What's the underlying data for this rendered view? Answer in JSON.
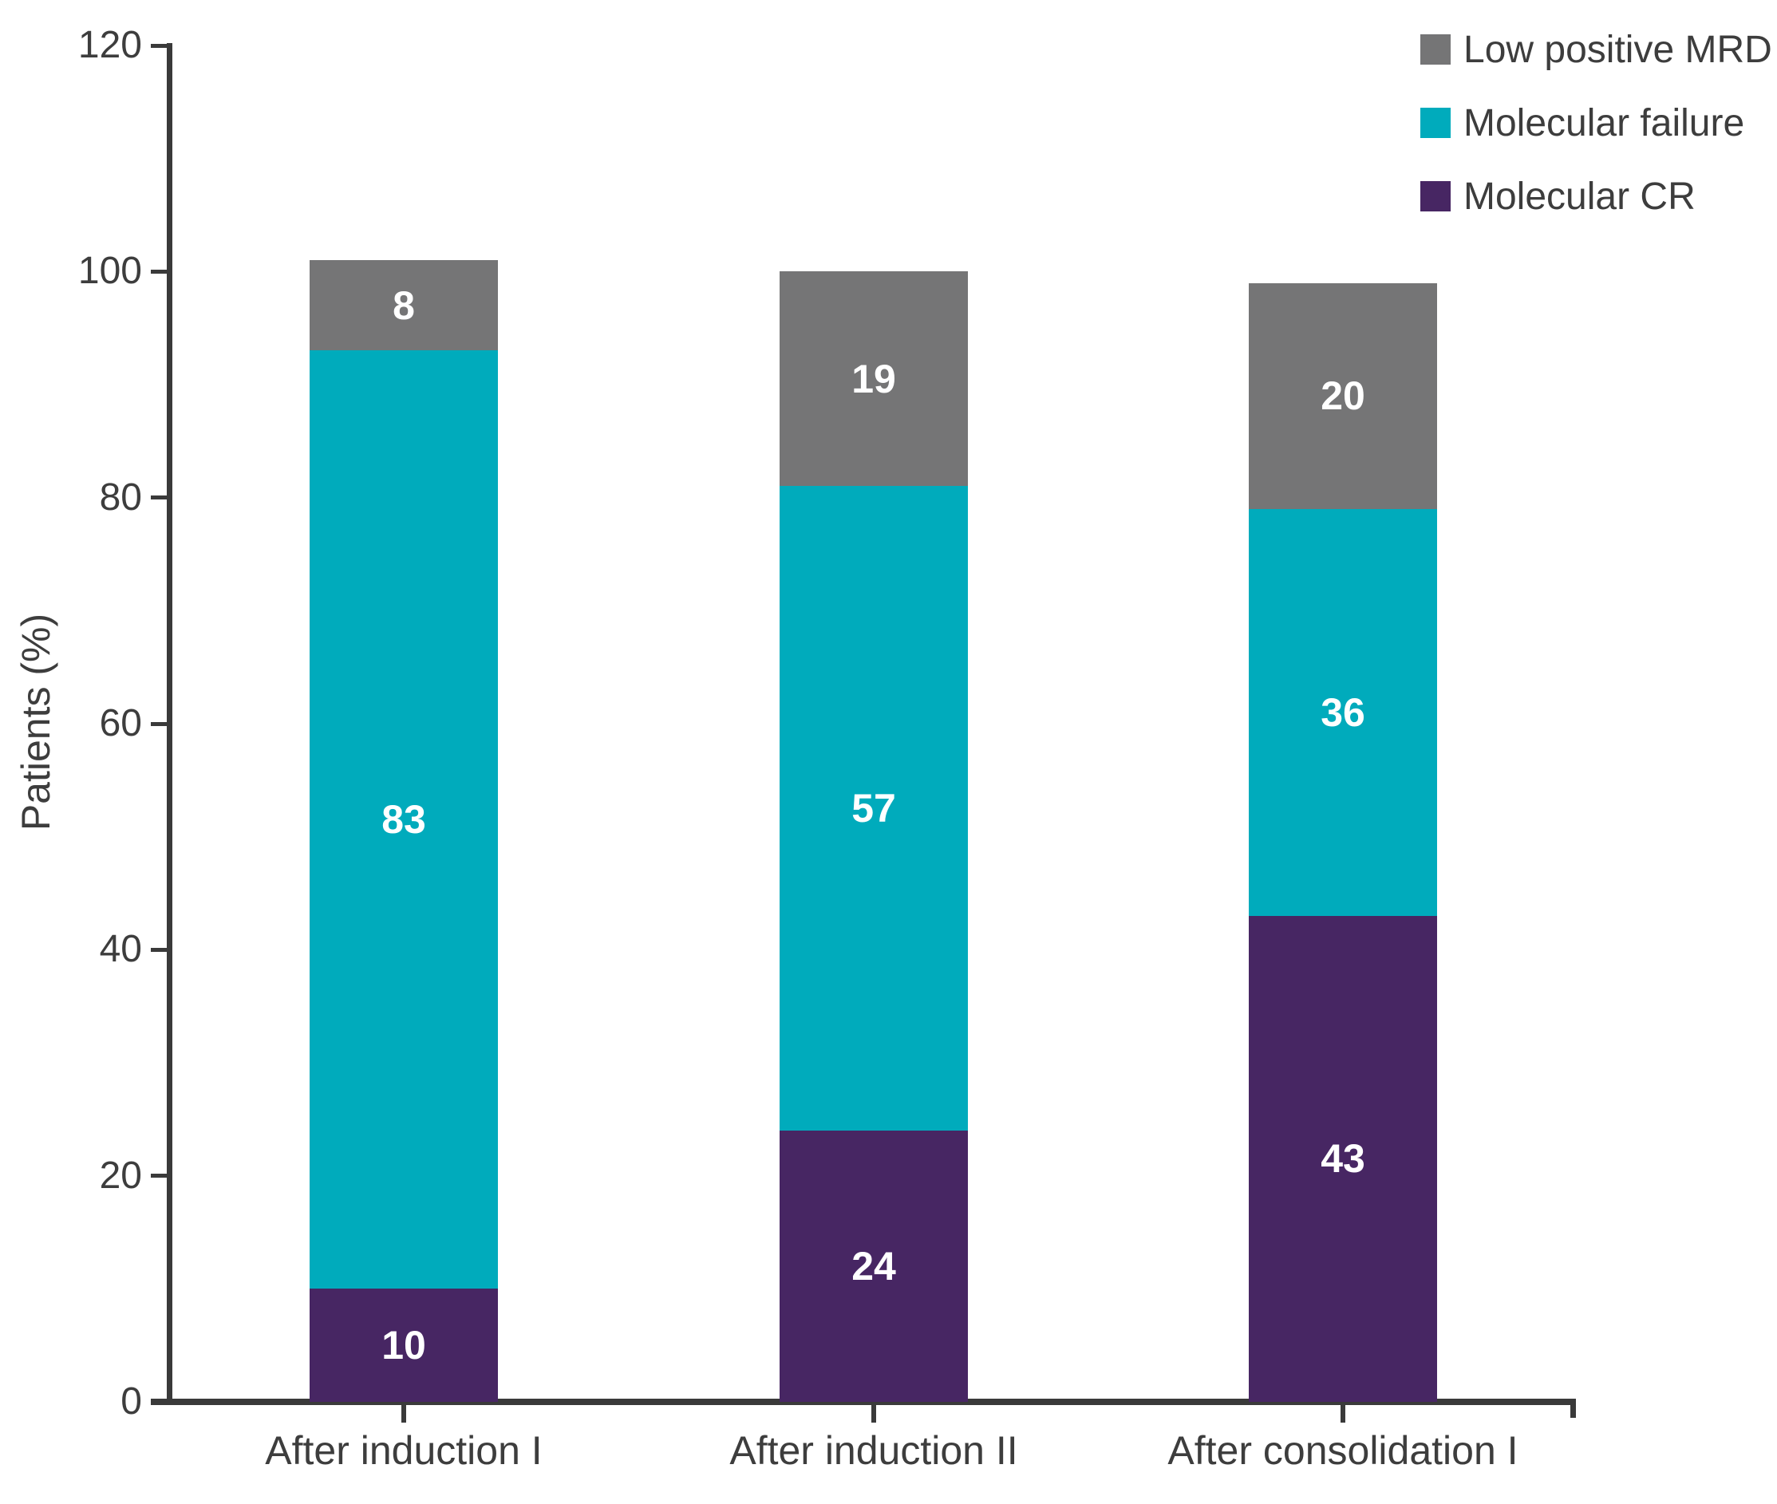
{
  "chart_data": {
    "type": "bar",
    "stacked": true,
    "title": "",
    "ylabel": "Patients (%)",
    "xlabel": "",
    "ylim": [
      0,
      120
    ],
    "yticks": [
      0,
      20,
      40,
      60,
      80,
      100,
      120
    ],
    "grid": false,
    "legend_position": "top-right",
    "categories": [
      "After induction I",
      "After induction II",
      "After consolidation I"
    ],
    "series": [
      {
        "name": "Molecular CR",
        "color": "#472663",
        "values": [
          10,
          24,
          43
        ]
      },
      {
        "name": "Molecular failure",
        "color": "#00abbc",
        "values": [
          83,
          57,
          36
        ]
      },
      {
        "name": "Low positive MRD",
        "color": "#757576",
        "values": [
          8,
          19,
          20
        ]
      }
    ],
    "legend": [
      "Low positive MRD",
      "Molecular failure",
      "Molecular CR"
    ],
    "bar_value_labels": true,
    "colors": {
      "axis": "#3a3a3a",
      "text": "#3d3d3d",
      "bar_label": "#ffffff",
      "background": "#ffffff"
    }
  }
}
